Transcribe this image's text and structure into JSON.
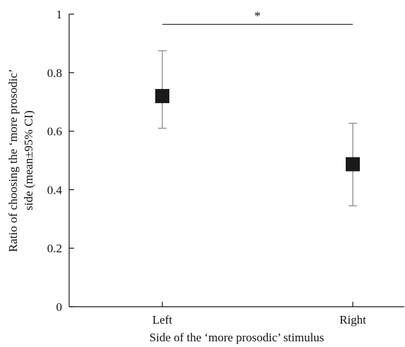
{
  "chart_data": {
    "type": "scatter",
    "title": "",
    "xlabel": "Side of the ‘more prosodic’ stimulus",
    "ylabel_lines": [
      "Ratio of choosing the ‘more prosodic’",
      "side (mean±95% CI)"
    ],
    "categories": [
      "Left",
      "Right"
    ],
    "values": [
      0.72,
      0.487
    ],
    "ci_lower": [
      0.61,
      0.345
    ],
    "ci_upper": [
      0.875,
      0.627
    ],
    "yticks": [
      0,
      0.2,
      0.4,
      0.6,
      0.8,
      1
    ],
    "ytick_labels": [
      "0",
      "0.2",
      "0.4",
      "0.6",
      "0.8",
      "1"
    ],
    "ylim": [
      0,
      1
    ],
    "grid": false,
    "legend": "none",
    "annotation": {
      "text": "*",
      "y": 0.965,
      "between": [
        "Left",
        "Right"
      ]
    },
    "colors": {
      "marker": "#1a1a1a",
      "errorbar": "#8c8c8c",
      "axis": "#111111",
      "bracket": "#333333"
    }
  }
}
